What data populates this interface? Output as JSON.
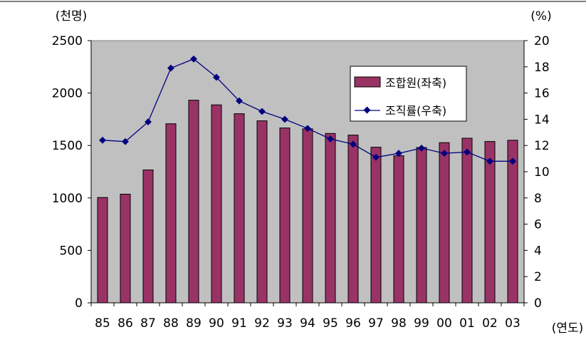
{
  "chart_data": {
    "type": "bar+line",
    "categories": [
      "85",
      "86",
      "87",
      "88",
      "89",
      "90",
      "91",
      "92",
      "93",
      "94",
      "95",
      "96",
      "97",
      "98",
      "99",
      "00",
      "01",
      "02",
      "03"
    ],
    "series": [
      {
        "name": "조합원(좌축)",
        "type": "bar",
        "axis": "left",
        "color": "#993366",
        "values": [
          1004,
          1036,
          1267,
          1707,
          1932,
          1887,
          1803,
          1735,
          1667,
          1659,
          1615,
          1599,
          1484,
          1402,
          1481,
          1527,
          1569,
          1538,
          1550
        ]
      },
      {
        "name": "조직률(우축)",
        "type": "line",
        "axis": "right",
        "color": "#000080",
        "values": [
          12.4,
          12.3,
          13.8,
          17.9,
          18.6,
          17.2,
          15.4,
          14.6,
          14.0,
          13.3,
          12.5,
          12.1,
          11.1,
          11.4,
          11.8,
          11.4,
          11.5,
          10.8,
          10.8
        ]
      }
    ],
    "left_axis": {
      "unit_label": "(천명)",
      "ylim": [
        0,
        2500
      ],
      "ticks": [
        "0",
        "500",
        "1000",
        "1500",
        "2000",
        "2500"
      ]
    },
    "right_axis": {
      "unit_label": "(%)",
      "ylim": [
        0,
        20
      ],
      "ticks": [
        "0",
        "2",
        "4",
        "6",
        "8",
        "10",
        "12",
        "14",
        "16",
        "18",
        "20"
      ]
    },
    "x_axis": {
      "unit_label": "(연도)"
    },
    "plot_background": "#c0c0c0",
    "legend_position": "top-right-inside",
    "grid": false
  }
}
